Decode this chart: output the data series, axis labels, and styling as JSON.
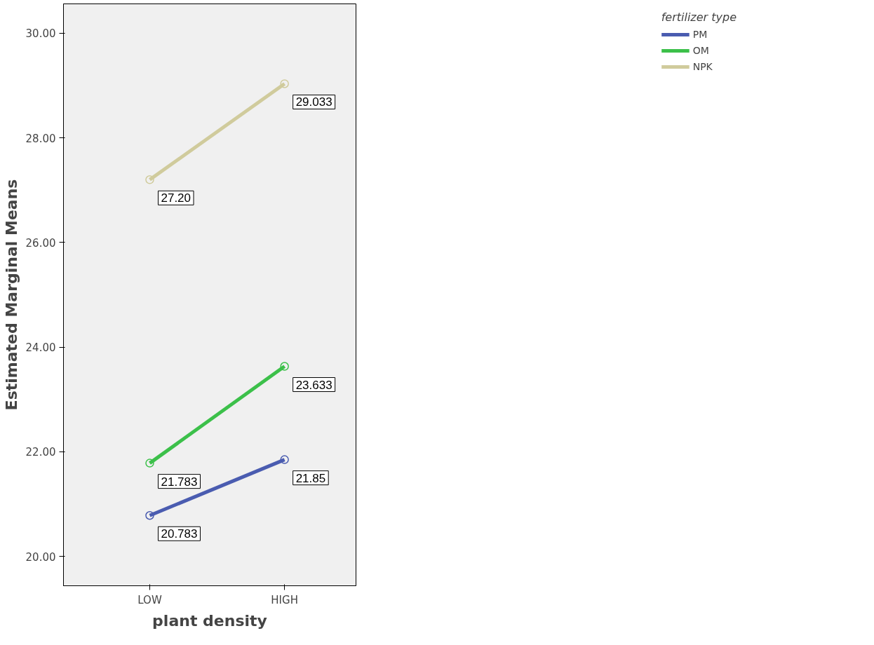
{
  "chart_data": {
    "type": "line",
    "xlabel": "plant density",
    "ylabel": "Estimated Marginal Means",
    "legend_title": "fertilizer type",
    "categories": [
      "LOW",
      "HIGH"
    ],
    "series": [
      {
        "name": "PM",
        "color": "#4a5cb0",
        "values": [
          20.783,
          21.85
        ],
        "value_labels": [
          "20.783",
          "21.85"
        ]
      },
      {
        "name": "OM",
        "color": "#3cc04a",
        "values": [
          21.783,
          23.633
        ],
        "value_labels": [
          "21.783",
          "23.633"
        ]
      },
      {
        "name": "NPK",
        "color": "#d0cb9c",
        "values": [
          27.2,
          29.033
        ],
        "value_labels": [
          "27.20",
          "29.033"
        ]
      }
    ],
    "ylim": [
      19.44,
      30.56
    ],
    "yticks": [
      {
        "value": 20,
        "label": "20.00"
      },
      {
        "value": 22,
        "label": "22.00"
      },
      {
        "value": 24,
        "label": "24.00"
      },
      {
        "value": 26,
        "label": "26.00"
      },
      {
        "value": 28,
        "label": "28.00"
      },
      {
        "value": 30,
        "label": "30.00"
      }
    ],
    "legend": "right",
    "marker": "circle",
    "grid": false
  }
}
